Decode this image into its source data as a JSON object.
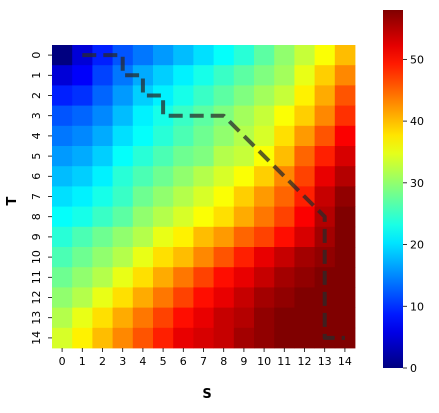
{
  "chart_data": {
    "type": "heatmap",
    "xlabel": "S",
    "ylabel": "T",
    "x_ticks": [
      "0",
      "1",
      "2",
      "3",
      "4",
      "5",
      "6",
      "7",
      "8",
      "9",
      "10",
      "11",
      "12",
      "13",
      "14"
    ],
    "y_ticks": [
      "0",
      "1",
      "2",
      "3",
      "4",
      "5",
      "6",
      "7",
      "8",
      "9",
      "10",
      "11",
      "12",
      "13",
      "14"
    ],
    "colormap": "jet",
    "colorbar": {
      "vmin": 0,
      "vmax": 58,
      "ticks": [
        "0",
        "10",
        "20",
        "30",
        "40",
        "50"
      ]
    },
    "values": [
      [
        0,
        5,
        9,
        12,
        14,
        16,
        18,
        20,
        22,
        24,
        27,
        30,
        33,
        36,
        40
      ],
      [
        5,
        7,
        11,
        14,
        17,
        19,
        21,
        23,
        25,
        27,
        29,
        31,
        35,
        39,
        43
      ],
      [
        9,
        10,
        13,
        16,
        19,
        21,
        23,
        25,
        27,
        29,
        31,
        33,
        37,
        41,
        46
      ],
      [
        12,
        13,
        15,
        18,
        21,
        23,
        25,
        27,
        29,
        31,
        33,
        36,
        39,
        43,
        48
      ],
      [
        14,
        15,
        17,
        20,
        22,
        24,
        26,
        28,
        30,
        32,
        34,
        38,
        42,
        46,
        51
      ],
      [
        16,
        17,
        19,
        22,
        24,
        26,
        28,
        29,
        32,
        33,
        36,
        40,
        45,
        49,
        53
      ],
      [
        18,
        19,
        21,
        24,
        26,
        28,
        30,
        32,
        34,
        36,
        39,
        43,
        47,
        52,
        55
      ],
      [
        20,
        21,
        23,
        25,
        28,
        30,
        32,
        34,
        36,
        39,
        42,
        45,
        49,
        54,
        57
      ],
      [
        22,
        23,
        25,
        27,
        30,
        32,
        34,
        36,
        38,
        41,
        44,
        47,
        51,
        55,
        58
      ],
      [
        24,
        26,
        28,
        30,
        32,
        35,
        37,
        40,
        42,
        45,
        47,
        50,
        53,
        56,
        58
      ],
      [
        26,
        28,
        30,
        32,
        35,
        38,
        40,
        43,
        46,
        49,
        52,
        54,
        56,
        57,
        58
      ],
      [
        28,
        30,
        32,
        35,
        38,
        41,
        44,
        47,
        50,
        52,
        54,
        56,
        57,
        58,
        58
      ],
      [
        30,
        32,
        35,
        38,
        41,
        44,
        47,
        50,
        52,
        54,
        56,
        57,
        58,
        58,
        58
      ],
      [
        32,
        35,
        38,
        41,
        44,
        47,
        50,
        52,
        54,
        55,
        57,
        58,
        58,
        58,
        58
      ],
      [
        34,
        37,
        40,
        43,
        46,
        49,
        52,
        53,
        54,
        56,
        57,
        58,
        58,
        58,
        58
      ]
    ],
    "path": [
      [
        1,
        0
      ],
      [
        3,
        0
      ],
      [
        3,
        1
      ],
      [
        4,
        1
      ],
      [
        4,
        2
      ],
      [
        5,
        2
      ],
      [
        5,
        3
      ],
      [
        8,
        3
      ],
      [
        13,
        8
      ],
      [
        13,
        14
      ],
      [
        14,
        14
      ]
    ],
    "path_color": "#2a2a2a"
  }
}
